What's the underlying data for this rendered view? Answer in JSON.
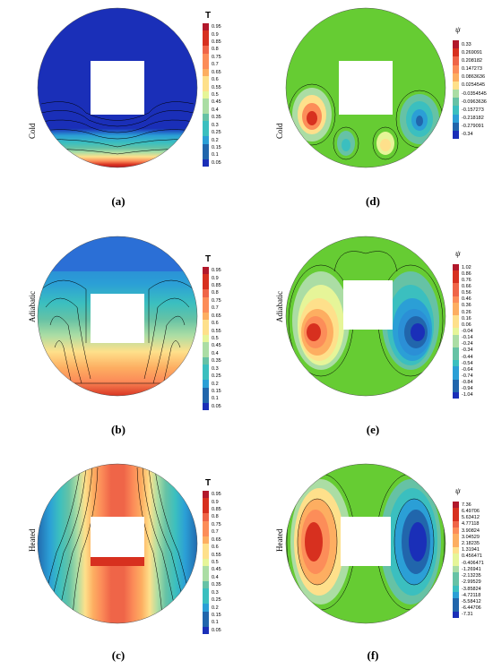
{
  "rows": [
    {
      "label": "Cold"
    },
    {
      "label": "Adiabatic"
    },
    {
      "label": "Heated"
    }
  ],
  "captions": [
    "(a)",
    "(b)",
    "(c)",
    "(d)",
    "(e)",
    "(f)"
  ],
  "legends": {
    "temperature": {
      "title": "T",
      "ticks": [
        "0.95",
        "0.9",
        "0.85",
        "0.8",
        "0.75",
        "0.7",
        "0.65",
        "0.6",
        "0.55",
        "0.5",
        "0.45",
        "0.4",
        "0.35",
        "0.3",
        "0.25",
        "0.2",
        "0.15",
        "0.1",
        "0.05"
      ]
    },
    "psi_cold": {
      "title": "ψ",
      "ticks": [
        "0.33",
        "0.269091",
        "0.208182",
        "0.147273",
        "0.0863636",
        "0.0254545",
        "-0.0354545",
        "-0.0963636",
        "-0.157273",
        "-0.218182",
        "-0.279091",
        "-0.34"
      ]
    },
    "psi_adiabatic": {
      "title": "ψ",
      "ticks": [
        "1.02",
        "0.86",
        "0.76",
        "0.66",
        "0.56",
        "0.46",
        "0.36",
        "0.26",
        "0.16",
        "0.06",
        "-0.04",
        "-0.14",
        "-0.24",
        "-0.34",
        "-0.44",
        "-0.54",
        "-0.64",
        "-0.74",
        "-0.84",
        "-0.94",
        "-1.04"
      ]
    },
    "psi_heated": {
      "title": "ψ",
      "ticks": [
        "7.36",
        "6.49706",
        "5.63412",
        "4.77118",
        "3.90824",
        "3.04529",
        "2.18235",
        "1.31941",
        "0.456471",
        "-0.406471",
        "-1.26941",
        "-2.13235",
        "-2.99529",
        "-3.85824",
        "-4.72118",
        "-5.58412",
        "-6.44706",
        "-7.31"
      ]
    }
  },
  "colormap": [
    "#b2182b",
    "#d7301f",
    "#ef6548",
    "#fc8d59",
    "#fdae61",
    "#fee08b",
    "#e6f598",
    "#abdda4",
    "#66c2a5",
    "#3bbfbf",
    "#2b9fd6",
    "#2166ac",
    "#1a2fb8"
  ]
}
